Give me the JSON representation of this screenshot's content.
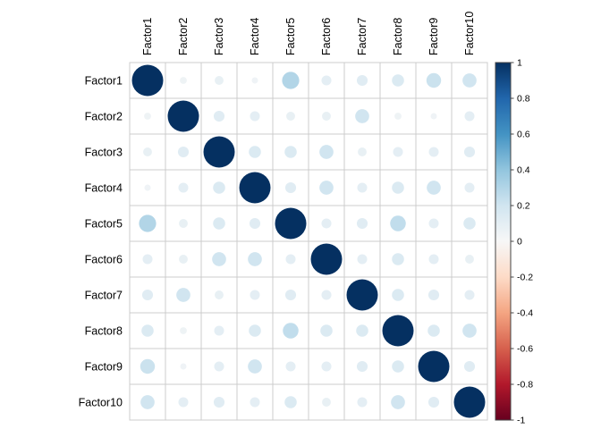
{
  "chart_data": {
    "type": "heatmap",
    "subtype": "correlation-circle-matrix",
    "title": "",
    "labels": [
      "Factor1",
      "Factor2",
      "Factor3",
      "Factor4",
      "Factor5",
      "Factor6",
      "Factor7",
      "Factor8",
      "Factor9",
      "Factor10"
    ],
    "matrix": [
      [
        1.0,
        0.05,
        0.08,
        0.04,
        0.3,
        0.1,
        0.12,
        0.15,
        0.22,
        0.2
      ],
      [
        0.05,
        1.0,
        0.12,
        0.1,
        0.08,
        0.08,
        0.2,
        0.05,
        0.04,
        0.1
      ],
      [
        0.08,
        0.12,
        1.0,
        0.15,
        0.15,
        0.2,
        0.08,
        0.1,
        0.1,
        0.12
      ],
      [
        0.04,
        0.1,
        0.15,
        1.0,
        0.12,
        0.2,
        0.1,
        0.15,
        0.2,
        0.1
      ],
      [
        0.3,
        0.08,
        0.15,
        0.12,
        1.0,
        0.1,
        0.12,
        0.25,
        0.1,
        0.15
      ],
      [
        0.1,
        0.08,
        0.2,
        0.2,
        0.1,
        1.0,
        0.1,
        0.15,
        0.1,
        0.08
      ],
      [
        0.12,
        0.2,
        0.08,
        0.1,
        0.12,
        0.1,
        1.0,
        0.15,
        0.12,
        0.1
      ],
      [
        0.15,
        0.05,
        0.1,
        0.15,
        0.25,
        0.15,
        0.15,
        1.0,
        0.15,
        0.2
      ],
      [
        0.22,
        0.04,
        0.1,
        0.2,
        0.1,
        0.1,
        0.12,
        0.15,
        1.0,
        0.12
      ],
      [
        0.2,
        0.1,
        0.12,
        0.1,
        0.15,
        0.08,
        0.1,
        0.2,
        0.12,
        1.0
      ]
    ],
    "value_range": [
      -1,
      1
    ],
    "colorbar_ticks": [
      "1",
      "0.8",
      "0.6",
      "0.4",
      "0.2",
      "0",
      "-0.2",
      "-0.4",
      "-0.6",
      "-0.8",
      "-1"
    ],
    "legend_position": "right",
    "grid": true,
    "colors": {
      "palette_rdbu": [
        "#67001F",
        "#B2182B",
        "#D6604D",
        "#F4A582",
        "#FDDBC7",
        "#F7F7F7",
        "#D1E5F0",
        "#92C5DE",
        "#4393C3",
        "#2166AC",
        "#053061"
      ],
      "grid_line": "#cccccc",
      "cell_fill": "#ffffff",
      "label_text": "#000000",
      "tick_text": "#000000",
      "colorbar_border": "#444444"
    }
  }
}
